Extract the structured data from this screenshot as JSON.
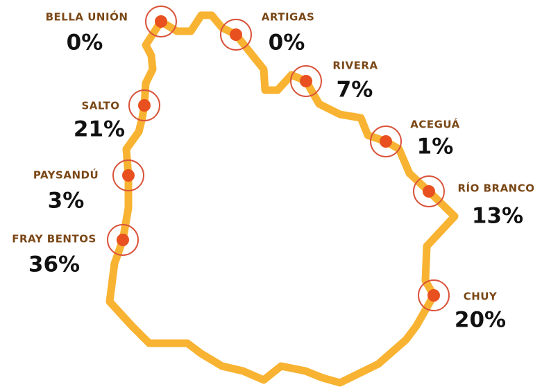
{
  "points": [
    {
      "name": "BELLA UNIÓN",
      "share": "0%"
    },
    {
      "name": "ARTIGAS",
      "share": "0%"
    },
    {
      "name": "RIVERA",
      "share": "7%"
    },
    {
      "name": "ACEGUÁ",
      "share": "1%"
    },
    {
      "name": "RÍO BRANCO",
      "share": "13%"
    },
    {
      "name": "CHUY",
      "share": "20%"
    },
    {
      "name": "SALTO",
      "share": "21%"
    },
    {
      "name": "PAYSANDÚ",
      "share": "3%"
    },
    {
      "name": "FRAY BENTOS",
      "share": "36%"
    }
  ]
}
